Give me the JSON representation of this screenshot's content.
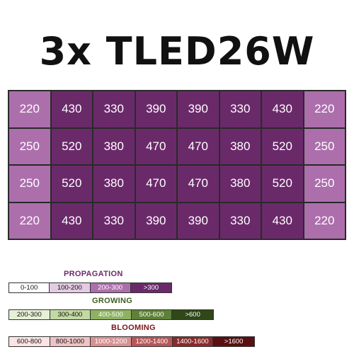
{
  "title": "3x TLED26W",
  "colors": {
    "ppfd_200_300": "#ac6fac",
    "ppfd_over_300": "#6a2a6a"
  },
  "chart_data": {
    "type": "heatmap",
    "rows": 4,
    "cols": 8,
    "values": [
      [
        220,
        430,
        330,
        390,
        390,
        330,
        430,
        220
      ],
      [
        250,
        520,
        380,
        470,
        470,
        380,
        520,
        250
      ],
      [
        250,
        520,
        380,
        470,
        470,
        380,
        520,
        250
      ],
      [
        220,
        430,
        330,
        390,
        390,
        330,
        430,
        220
      ]
    ]
  },
  "legend": [
    {
      "title": "PROPAGATION",
      "title_color": "#6b2a6b",
      "segments": [
        {
          "label": "0-100",
          "bg": "#ffffff",
          "fg": "#111111"
        },
        {
          "label": "100-200",
          "bg": "#e3cbe3",
          "fg": "#111111"
        },
        {
          "label": "200-300",
          "bg": "#ac6fac",
          "fg": "#ffffff"
        },
        {
          "label": ">300",
          "bg": "#6a2a6a",
          "fg": "#ffffff"
        }
      ]
    },
    {
      "title": "GROWING",
      "title_color": "#3f5c23",
      "segments": [
        {
          "label": "200-300",
          "bg": "#e6f0d6",
          "fg": "#111111"
        },
        {
          "label": "300-400",
          "bg": "#c3d9a4",
          "fg": "#111111"
        },
        {
          "label": "400-500",
          "bg": "#8fb262",
          "fg": "#ffffff"
        },
        {
          "label": "500-600",
          "bg": "#5f8038",
          "fg": "#ffffff"
        },
        {
          "label": ">600",
          "bg": "#2f4719",
          "fg": "#ffffff"
        }
      ]
    },
    {
      "title": "BLOOMING",
      "title_color": "#7a1616",
      "segments": [
        {
          "label": "600-800",
          "bg": "#fbe4e4",
          "fg": "#111111"
        },
        {
          "label": "800-1000",
          "bg": "#eec3c3",
          "fg": "#111111"
        },
        {
          "label": "1000-1200",
          "bg": "#d99292",
          "fg": "#ffffff"
        },
        {
          "label": "1200-1400",
          "bg": "#b65858",
          "fg": "#ffffff"
        },
        {
          "label": "1400-1600",
          "bg": "#8a2a2a",
          "fg": "#ffffff"
        },
        {
          "label": ">1600",
          "bg": "#5a1010",
          "fg": "#ffffff"
        }
      ]
    }
  ]
}
